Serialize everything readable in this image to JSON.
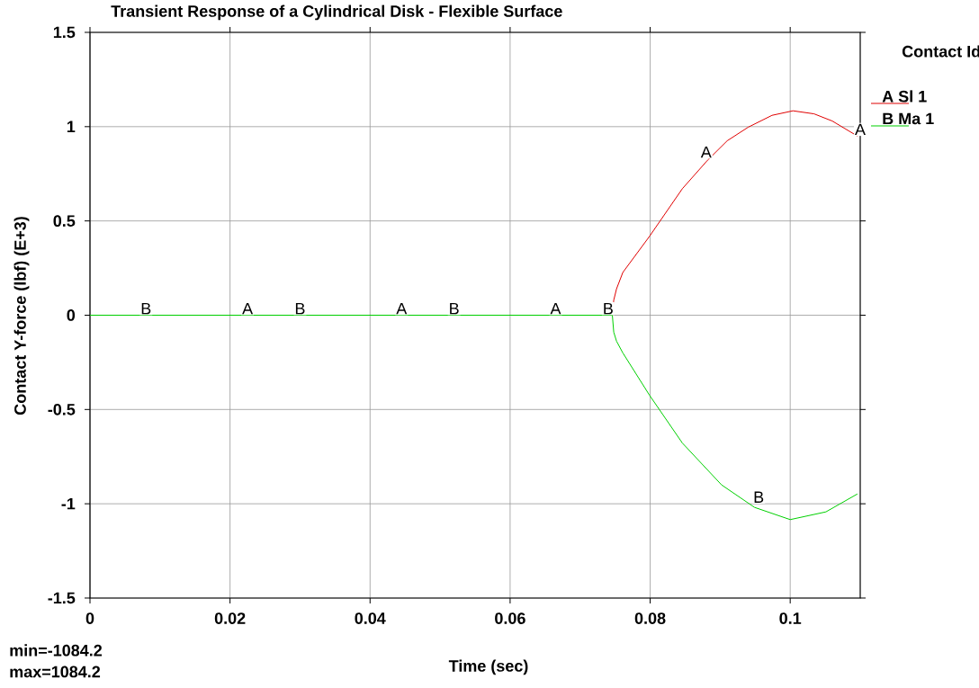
{
  "chart_data": {
    "type": "line",
    "title": "Transient Response of a Cylindrical Disk - Flexible Surface",
    "xlabel": "Time (sec)",
    "ylabel": "Contact Y-force (lbf) (E+3)",
    "legend_title": "Contact Id",
    "xlim": [
      0,
      0.11
    ],
    "ylim": [
      -1.5,
      1.5
    ],
    "xticks": [
      0,
      0.02,
      0.04,
      0.06,
      0.08,
      0.1
    ],
    "yticks": [
      -1.5,
      -1,
      -0.5,
      0,
      0.5,
      1,
      1.5
    ],
    "grid": true,
    "legend": "right",
    "line_style": "solid",
    "series": [
      {
        "name": "A Sl 1",
        "color": "#e00000",
        "x": [
          0.0746,
          0.0748,
          0.0752,
          0.0761,
          0.0799,
          0.0846,
          0.0882,
          0.091,
          0.094,
          0.0974,
          0.1004,
          0.1034,
          0.106,
          0.1096
        ],
        "values": [
          0,
          0.08,
          0.14,
          0.227,
          0.418,
          0.671,
          0.822,
          0.925,
          0.997,
          1.06,
          1.084,
          1.068,
          1.03,
          0.95
        ]
      },
      {
        "name": "B Ma 1",
        "color": "#00d000",
        "x": [
          0,
          0.0746,
          0.0748,
          0.0752,
          0.0761,
          0.0799,
          0.0846,
          0.0902,
          0.0949,
          0.1,
          0.1051,
          0.1096
        ],
        "values": [
          0,
          0,
          -0.09,
          -0.138,
          -0.2,
          -0.424,
          -0.678,
          -0.9,
          -1.019,
          -1.084,
          -1.043,
          -0.948
        ]
      }
    ],
    "annotations": [
      {
        "text": "B",
        "x": 0.008,
        "y": 0
      },
      {
        "text": "A",
        "x": 0.0225,
        "y": 0
      },
      {
        "text": "B",
        "x": 0.03,
        "y": 0
      },
      {
        "text": "A",
        "x": 0.0445,
        "y": 0
      },
      {
        "text": "B",
        "x": 0.052,
        "y": 0
      },
      {
        "text": "A",
        "x": 0.0665,
        "y": 0
      },
      {
        "text": "B",
        "x": 0.074,
        "y": 0
      },
      {
        "text": "A",
        "x": 0.088,
        "y": 0.83
      },
      {
        "text": "A",
        "x": 0.11,
        "y": 0.95
      },
      {
        "text": "B",
        "x": 0.0955,
        "y": -1.0
      },
      "min=-1084.2",
      "max=1084.2"
    ]
  }
}
